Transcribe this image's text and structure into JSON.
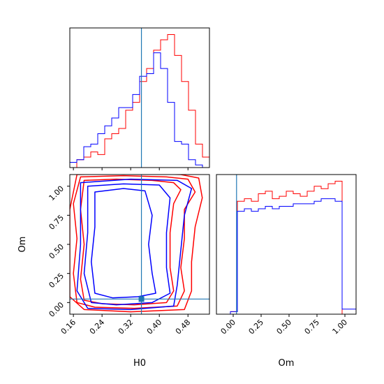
{
  "chart_data": {
    "type": "corner",
    "parameters": [
      "H0",
      "Om"
    ],
    "truth": {
      "H0": 0.35,
      "Om": 0.03
    },
    "colors": {
      "series_a": "#ff0000",
      "series_b": "#0000ff",
      "truth": "#1f77b4"
    },
    "panels": [
      {
        "id": "hist-H0",
        "type": "histogram",
        "x_range": [
          0.15,
          0.54
        ],
        "x_ticks": [
          0.16,
          0.24,
          0.32,
          0.4,
          0.48
        ],
        "bin_edges": [
          0.15,
          0.1695,
          0.189,
          0.2085,
          0.228,
          0.2475,
          0.267,
          0.2865,
          0.306,
          0.3255,
          0.345,
          0.3645,
          0.384,
          0.4035,
          0.423,
          0.4425,
          0.462,
          0.4815,
          0.501,
          0.5205,
          0.54
        ],
        "series": [
          {
            "color": "red",
            "values": [
              0,
              3,
              4,
              6,
              5,
              11,
              13,
              15,
              22,
              25,
              33,
              38,
              45,
              49,
              51,
              43,
              33,
              22,
              9,
              4
            ]
          },
          {
            "color": "blue",
            "values": [
              2,
              3,
              8,
              9,
              13,
              16,
              19,
              23,
              23,
              28,
              35,
              36,
              44,
              38,
              25,
              10,
              9,
              3,
              1,
              0
            ]
          }
        ]
      },
      {
        "id": "contour-H0-Om",
        "type": "contour",
        "x_range": [
          0.15,
          0.54
        ],
        "y_range": [
          -0.1,
          1.1
        ],
        "x_ticks": [
          0.16,
          0.24,
          0.32,
          0.4,
          0.48
        ],
        "y_ticks": [
          0.0,
          0.25,
          0.5,
          0.75,
          1.0
        ],
        "xlabel": "H0",
        "ylabel": "Om",
        "series": [
          {
            "color": "red",
            "levels": [
              [
                [
                  0.19,
                  1.05
                ],
                [
                  0.28,
                  1.06
                ],
                [
                  0.38,
                  1.05
                ],
                [
                  0.44,
                  1.03
                ],
                [
                  0.46,
                  0.97
                ],
                [
                  0.44,
                  0.85
                ],
                [
                  0.43,
                  0.6
                ],
                [
                  0.43,
                  0.3
                ],
                [
                  0.44,
                  0.1
                ],
                [
                  0.42,
                  0.0
                ],
                [
                  0.33,
                  -0.02
                ],
                [
                  0.24,
                  -0.01
                ],
                [
                  0.19,
                  0.02
                ],
                [
                  0.18,
                  0.2
                ],
                [
                  0.19,
                  0.5
                ],
                [
                  0.18,
                  0.8
                ],
                [
                  0.19,
                  1.05
                ]
              ],
              [
                [
                  0.18,
                  1.08
                ],
                [
                  0.3,
                  1.09
                ],
                [
                  0.42,
                  1.08
                ],
                [
                  0.48,
                  1.06
                ],
                [
                  0.5,
                  0.95
                ],
                [
                  0.47,
                  0.8
                ],
                [
                  0.47,
                  0.55
                ],
                [
                  0.46,
                  0.3
                ],
                [
                  0.47,
                  0.1
                ],
                [
                  0.45,
                  -0.03
                ],
                [
                  0.33,
                  -0.05
                ],
                [
                  0.22,
                  -0.04
                ],
                [
                  0.17,
                  0.0
                ],
                [
                  0.16,
                  0.25
                ],
                [
                  0.17,
                  0.55
                ],
                [
                  0.16,
                  0.85
                ],
                [
                  0.18,
                  1.08
                ]
              ],
              [
                [
                  0.17,
                  1.1
                ],
                [
                  0.33,
                  1.11
                ],
                [
                  0.46,
                  1.1
                ],
                [
                  0.51,
                  1.07
                ],
                [
                  0.52,
                  0.9
                ],
                [
                  0.5,
                  0.65
                ],
                [
                  0.49,
                  0.35
                ],
                [
                  0.49,
                  0.1
                ],
                [
                  0.47,
                  -0.06
                ],
                [
                  0.32,
                  -0.08
                ],
                [
                  0.19,
                  -0.06
                ],
                [
                  0.15,
                  0.05
                ],
                [
                  0.15,
                  0.4
                ],
                [
                  0.15,
                  0.8
                ],
                [
                  0.17,
                  1.1
                ]
              ]
            ]
          },
          {
            "color": "blue",
            "levels": [
              [
                [
                  0.22,
                  0.95
                ],
                [
                  0.3,
                  0.98
                ],
                [
                  0.36,
                  0.96
                ],
                [
                  0.38,
                  0.75
                ],
                [
                  0.37,
                  0.5
                ],
                [
                  0.38,
                  0.25
                ],
                [
                  0.39,
                  0.08
                ],
                [
                  0.34,
                  0.05
                ],
                [
                  0.27,
                  0.04
                ],
                [
                  0.22,
                  0.08
                ],
                [
                  0.21,
                  0.35
                ],
                [
                  0.22,
                  0.65
                ],
                [
                  0.22,
                  0.95
                ]
              ],
              [
                [
                  0.2,
                  1.0
                ],
                [
                  0.3,
                  1.02
                ],
                [
                  0.4,
                  1.01
                ],
                [
                  0.43,
                  0.9
                ],
                [
                  0.42,
                  0.6
                ],
                [
                  0.42,
                  0.3
                ],
                [
                  0.43,
                  0.08
                ],
                [
                  0.38,
                  0.0
                ],
                [
                  0.28,
                  -0.02
                ],
                [
                  0.21,
                  0.0
                ],
                [
                  0.19,
                  0.25
                ],
                [
                  0.2,
                  0.6
                ],
                [
                  0.2,
                  1.0
                ]
              ],
              [
                [
                  0.18,
                  1.03
                ],
                [
                  0.32,
                  1.06
                ],
                [
                  0.45,
                  1.05
                ],
                [
                  0.49,
                  0.98
                ],
                [
                  0.47,
                  0.75
                ],
                [
                  0.46,
                  0.45
                ],
                [
                  0.45,
                  0.15
                ],
                [
                  0.44,
                  -0.03
                ],
                [
                  0.32,
                  -0.06
                ],
                [
                  0.2,
                  -0.05
                ],
                [
                  0.17,
                  0.1
                ],
                [
                  0.18,
                  0.5
                ],
                [
                  0.18,
                  1.03
                ]
              ]
            ]
          }
        ]
      },
      {
        "id": "hist-Om",
        "type": "histogram",
        "x_range": [
          -0.15,
          1.1
        ],
        "x_ticks": [
          0.0,
          0.25,
          0.5,
          0.75,
          1.0
        ],
        "xlabel": "Om",
        "bin_edges": [
          -0.15,
          -0.0875,
          -0.025,
          0.0375,
          0.1,
          0.1625,
          0.225,
          0.2875,
          0.35,
          0.4125,
          0.475,
          0.5375,
          0.6,
          0.6625,
          0.725,
          0.7875,
          0.85,
          0.9125,
          0.975,
          1.0375,
          1.1
        ],
        "series": [
          {
            "color": "red",
            "values": [
              0,
              0,
              1,
              45,
              46,
              45,
              48,
              49,
              46,
              47,
              49,
              48,
              47,
              49,
              51,
              50,
              52,
              53,
              0,
              0
            ]
          },
          {
            "color": "blue",
            "values": [
              0,
              0,
              1,
              41,
              42,
              41,
              42,
              43,
              42,
              43,
              43,
              44,
              44,
              44,
              45,
              46,
              46,
              45,
              2,
              2
            ]
          }
        ]
      }
    ]
  }
}
